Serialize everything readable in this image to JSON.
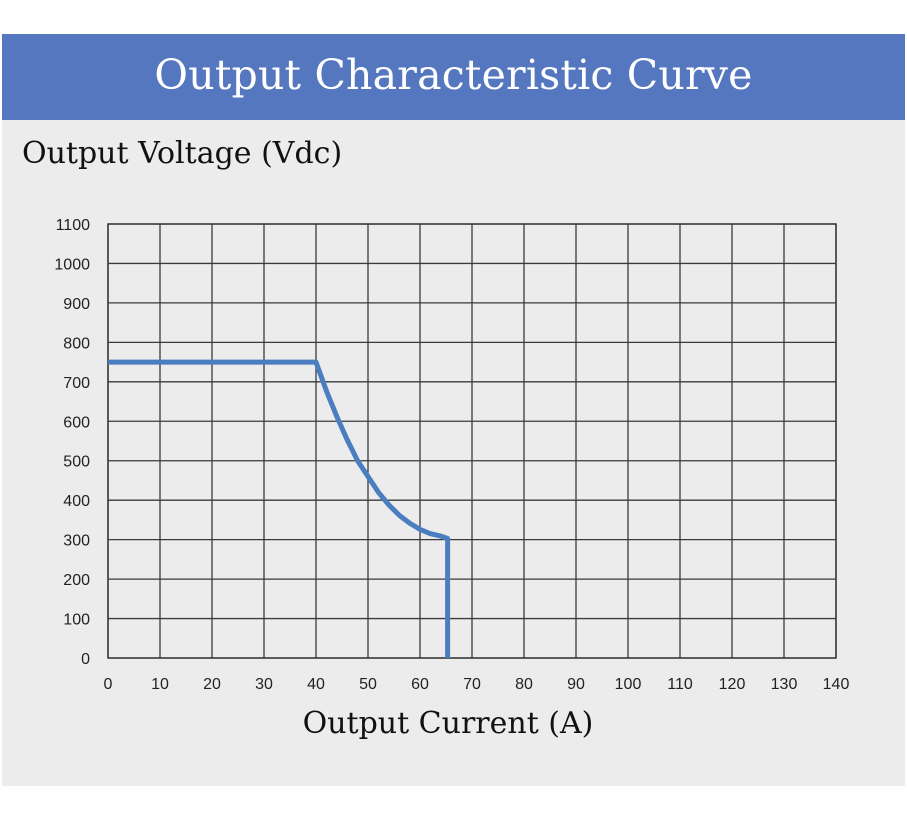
{
  "chart_data": {
    "type": "line",
    "title": "Output Characteristic Curve",
    "xlabel": "Output Current (A)",
    "ylabel": "Output Voltage (Vdc)",
    "xlim": [
      0,
      140
    ],
    "ylim": [
      0,
      1100
    ],
    "xticks": [
      0,
      10,
      20,
      30,
      40,
      50,
      60,
      70,
      80,
      90,
      100,
      110,
      120,
      130,
      140
    ],
    "yticks": [
      0,
      100,
      200,
      300,
      400,
      500,
      600,
      700,
      800,
      900,
      1000,
      1100
    ],
    "grid": true,
    "series": [
      {
        "x": [
          0,
          40,
          42,
          44,
          46,
          48,
          50,
          52,
          54,
          56,
          58,
          60,
          62,
          64,
          65.3,
          65.3
        ],
        "y": [
          750,
          750,
          677,
          612,
          553,
          500,
          460,
          420,
          388,
          362,
          342,
          326,
          315,
          309,
          303,
          0
        ]
      }
    ]
  },
  "colors": {
    "banner": "#5577c0",
    "line": "#4a7ec1",
    "grid": "#3a3a3a",
    "background": "#ececec"
  }
}
